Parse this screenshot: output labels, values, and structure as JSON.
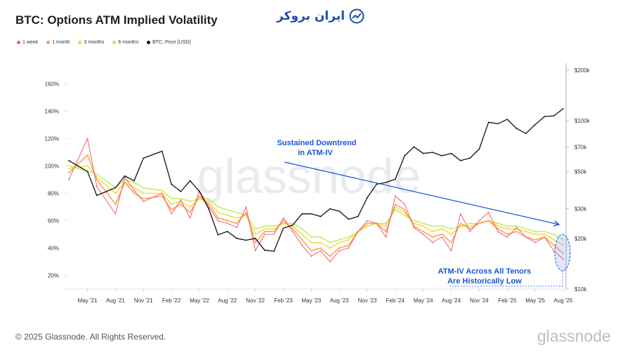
{
  "header": {
    "title": "BTC: Options ATM Implied Volatility",
    "brand_text": "ایران بروکر"
  },
  "legend": [
    {
      "label": "1 week",
      "color": "#f4636f"
    },
    {
      "label": "1 month",
      "color": "#f99a4b"
    },
    {
      "label": "3 months",
      "color": "#f5d63a"
    },
    {
      "label": "6 months",
      "color": "#b7ec5c"
    },
    {
      "label": "BTC: Price [USD]",
      "color": "#111111"
    }
  ],
  "annotations": {
    "downtrend": [
      "Sustained Downtrend",
      "in ATM-IV"
    ],
    "low": [
      "ATM-IV Across All Tenors",
      "Are Historically Low"
    ],
    "annotation_color": "#1a55d6"
  },
  "watermark": "glassnode",
  "footer": {
    "copyright": "© 2025 Glassnode. All Rights Reserved.",
    "logo_text": "glassnode"
  },
  "chart_data": {
    "type": "line",
    "title": "BTC: Options ATM Implied Volatility",
    "x": [
      "2021-03",
      "2021-05",
      "2021-06",
      "2021-08",
      "2021-09",
      "2021-10",
      "2021-11",
      "2022-01",
      "2022-02",
      "2022-03",
      "2022-04",
      "2022-05",
      "2022-06",
      "2022-07",
      "2022-08",
      "2022-09",
      "2022-10",
      "2022-11",
      "2022-12",
      "2023-01",
      "2023-02",
      "2023-03",
      "2023-04",
      "2023-05",
      "2023-06",
      "2023-07",
      "2023-08",
      "2023-09",
      "2023-10",
      "2023-11",
      "2023-12",
      "2024-01",
      "2024-02",
      "2024-03",
      "2024-04",
      "2024-05",
      "2024-06",
      "2024-07",
      "2024-08",
      "2024-09",
      "2024-10",
      "2024-11",
      "2024-12",
      "2025-01",
      "2025-02",
      "2025-03",
      "2025-04",
      "2025-05",
      "2025-06",
      "2025-07",
      "2025-08"
    ],
    "x_tick_labels": [
      "May '21",
      "Aug '21",
      "Nov '21",
      "Feb '22",
      "May '22",
      "Aug '22",
      "Nov '22",
      "Feb '23",
      "May '23",
      "Aug '23",
      "Nov '23",
      "Feb '24",
      "May '24",
      "Aug '24",
      "Nov '24",
      "Feb '25",
      "May '25",
      "Aug '25"
    ],
    "y_left": {
      "ticks": [
        "20%",
        "40%",
        "60%",
        "80%",
        "100%",
        "120%",
        "140%",
        "160%"
      ],
      "range": [
        10,
        170
      ],
      "unit": "%"
    },
    "y_right": {
      "ticks": [
        "$10k",
        "$20k",
        "$30k",
        "$50k",
        "$70k",
        "$100k",
        "$200k"
      ],
      "scale": "log",
      "range": [
        10000,
        200000
      ]
    },
    "series": [
      {
        "name": "1 week",
        "axis": "left",
        "color": "#f4636f",
        "values": [
          90,
          120,
          85,
          65,
          92,
          82,
          74,
          80,
          65,
          75,
          62,
          82,
          70,
          60,
          58,
          55,
          70,
          38,
          50,
          50,
          62,
          52,
          42,
          34,
          38,
          30,
          38,
          40,
          52,
          60,
          58,
          48,
          78,
          72,
          55,
          50,
          44,
          48,
          38,
          65,
          52,
          60,
          66,
          52,
          48,
          55,
          48,
          44,
          48,
          38,
          32
        ]
      },
      {
        "name": "1 month",
        "axis": "left",
        "color": "#f99a4b",
        "values": [
          95,
          108,
          90,
          72,
          88,
          80,
          76,
          78,
          68,
          72,
          66,
          78,
          72,
          62,
          60,
          58,
          66,
          44,
          52,
          52,
          60,
          54,
          46,
          38,
          40,
          34,
          40,
          42,
          52,
          58,
          58,
          52,
          72,
          68,
          56,
          52,
          48,
          50,
          44,
          58,
          54,
          58,
          60,
          54,
          50,
          52,
          48,
          46,
          48,
          42,
          36
        ]
      },
      {
        "name": "3 months",
        "axis": "left",
        "color": "#f5d63a",
        "values": [
          98,
          100,
          92,
          80,
          88,
          84,
          80,
          80,
          72,
          74,
          70,
          76,
          74,
          66,
          64,
          62,
          64,
          50,
          54,
          54,
          58,
          56,
          50,
          44,
          44,
          40,
          44,
          46,
          52,
          56,
          58,
          56,
          70,
          66,
          58,
          56,
          52,
          54,
          50,
          56,
          56,
          58,
          60,
          56,
          54,
          54,
          52,
          50,
          50,
          46,
          42
        ]
      },
      {
        "name": "6 months",
        "axis": "left",
        "color": "#b7ec5c",
        "values": [
          100,
          96,
          94,
          84,
          90,
          88,
          84,
          82,
          76,
          76,
          74,
          76,
          76,
          70,
          68,
          66,
          64,
          54,
          56,
          56,
          58,
          58,
          54,
          48,
          48,
          44,
          46,
          48,
          52,
          56,
          58,
          58,
          68,
          64,
          60,
          58,
          56,
          56,
          54,
          56,
          58,
          58,
          60,
          58,
          56,
          56,
          54,
          52,
          52,
          50,
          46
        ]
      },
      {
        "name": "BTC: Price [USD]",
        "axis": "right",
        "color": "#111111",
        "values": [
          58000,
          50000,
          36000,
          40000,
          47000,
          44000,
          60000,
          66000,
          42000,
          38000,
          44000,
          38000,
          30000,
          21000,
          22000,
          20000,
          19500,
          20000,
          17000,
          16800,
          23000,
          24000,
          28000,
          28000,
          27000,
          30000,
          29000,
          26000,
          27000,
          35000,
          42000,
          43000,
          45000,
          62000,
          70000,
          64000,
          65000,
          62000,
          64000,
          58000,
          60000,
          68000,
          98000,
          96000,
          102000,
          90000,
          84000,
          95000,
          106000,
          107000,
          118000
        ]
      }
    ]
  }
}
